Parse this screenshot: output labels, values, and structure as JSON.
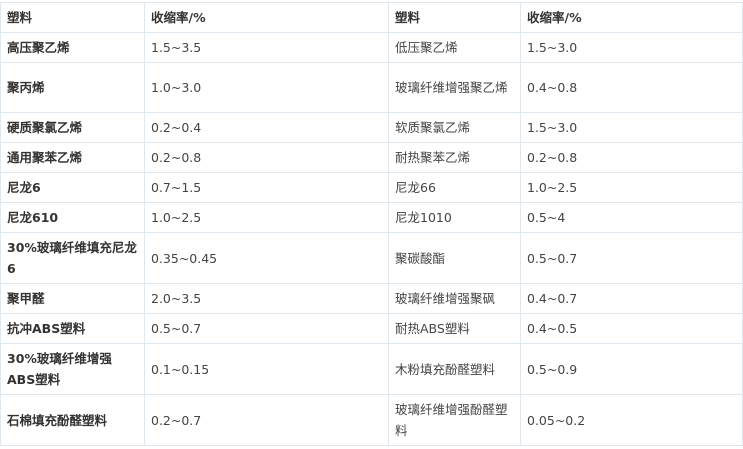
{
  "header": {
    "col1": "塑料",
    "col2": "收缩率/%",
    "col3": "塑料",
    "col4": "收缩率/%"
  },
  "rows": [
    {
      "a": "高压聚乙烯",
      "ar": "1.5~3.5",
      "b": "低压聚乙烯",
      "br": "1.5~3.0"
    },
    {
      "a": "聚丙烯",
      "ar": "1.0~3.0",
      "b": "玻璃纤维增强聚乙烯",
      "br": "0.4~0.8"
    },
    {
      "a": "硬质聚氯乙烯",
      "ar": "0.2~0.4",
      "b": "软质聚氯乙烯",
      "br": "1.5~3.0"
    },
    {
      "a": "通用聚苯乙烯",
      "ar": "0.2~0.8",
      "b": "耐热聚苯乙烯",
      "br": "0.2~0.8"
    },
    {
      "a": "尼龙6",
      "ar": "0.7~1.5",
      "b": "尼龙66",
      "br": "1.0~2.5"
    },
    {
      "a": "尼龙610",
      "ar": "1.0~2.5",
      "b": "尼龙1010",
      "br": "0.5~4"
    },
    {
      "a": "30%玻璃纤维填充尼龙6",
      "ar": "0.35~0.45",
      "b": "聚碳酸酯",
      "br": "0.5~0.7"
    },
    {
      "a": "聚甲醛",
      "ar": "2.0~3.5",
      "b": "玻璃纤维增强聚砜",
      "br": "0.4~0.7"
    },
    {
      "a": "抗冲ABS塑料",
      "ar": "0.5~0.7",
      "b": "耐热ABS塑料",
      "br": "0.4~0.5"
    },
    {
      "a": "30%玻璃纤维增强ABS塑料",
      "ar": "0.1~0.15",
      "b": "木粉填充酚醛塑料",
      "br": "0.5~0.9"
    },
    {
      "a": "石棉填充酚醛塑料",
      "ar": "0.2~0.7",
      "b": "玻璃纤维增强酚醛塑料",
      "br": "0.05~0.2"
    }
  ]
}
